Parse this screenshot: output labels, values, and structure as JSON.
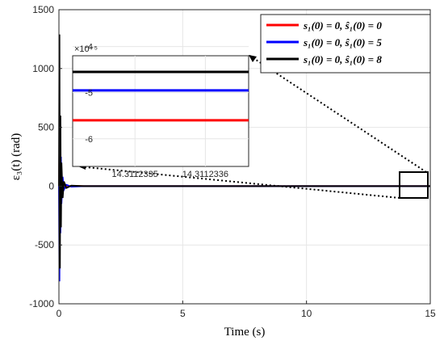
{
  "chart_data": {
    "type": "line",
    "xlabel": "Time (s)",
    "ylabel": "ε₃(t) (rad)",
    "xlim": [
      0,
      15
    ],
    "ylim": [
      -1000,
      1500
    ],
    "xticks": [
      "0",
      "5",
      "10",
      "15"
    ],
    "yticks": [
      "1500",
      "1000",
      "500",
      "0",
      "-500",
      "-1000"
    ],
    "grid": true,
    "legend_position": "top-right",
    "series": [
      {
        "name": "s₁(0) = 0, ŝ₁(0) = 0",
        "color": "#ff0000",
        "x": [
          0,
          0.02,
          0.04,
          0.06,
          0.08,
          0.1,
          0.15,
          0.2,
          0.3,
          0.5,
          1,
          15
        ],
        "y": [
          0,
          300,
          -300,
          200,
          -150,
          80,
          -40,
          20,
          -8,
          3,
          0,
          0
        ]
      },
      {
        "name": "s₁(0) = 0, ŝ₁(0) = 5",
        "color": "#0000ff",
        "x": [
          0,
          0.02,
          0.04,
          0.06,
          0.08,
          0.1,
          0.15,
          0.2,
          0.3,
          0.5,
          1,
          15
        ],
        "y": [
          0,
          -810,
          500,
          -400,
          250,
          -150,
          80,
          -30,
          12,
          -4,
          0,
          0
        ]
      },
      {
        "name": "s₁(0) = 0, ŝ₁(0) = 8",
        "color": "#000000",
        "x": [
          0,
          0.02,
          0.04,
          0.06,
          0.08,
          0.1,
          0.15,
          0.2,
          0.3,
          0.5,
          1,
          15
        ],
        "y": [
          0,
          1290,
          -700,
          600,
          -350,
          200,
          -100,
          40,
          -15,
          5,
          0,
          0
        ]
      }
    ],
    "inset": {
      "xticks": [
        "14.3112335",
        "14.3112336"
      ],
      "yticks": [
        "-4",
        "-5",
        "-6"
      ],
      "exponent_label": "×10⁻⁵",
      "ylim": [
        -4.2,
        -6.6
      ],
      "values": [
        {
          "series": "s₁(0) = 0, ŝ₁(0) = 0",
          "color": "#ff0000",
          "y": -5.6
        },
        {
          "series": "s₁(0) = 0, ŝ₁(0) = 5",
          "color": "#0000ff",
          "y": -4.95
        },
        {
          "series": "s₁(0) = 0, ŝ₁(0) = 8",
          "color": "#000000",
          "y": -4.55
        }
      ]
    }
  }
}
